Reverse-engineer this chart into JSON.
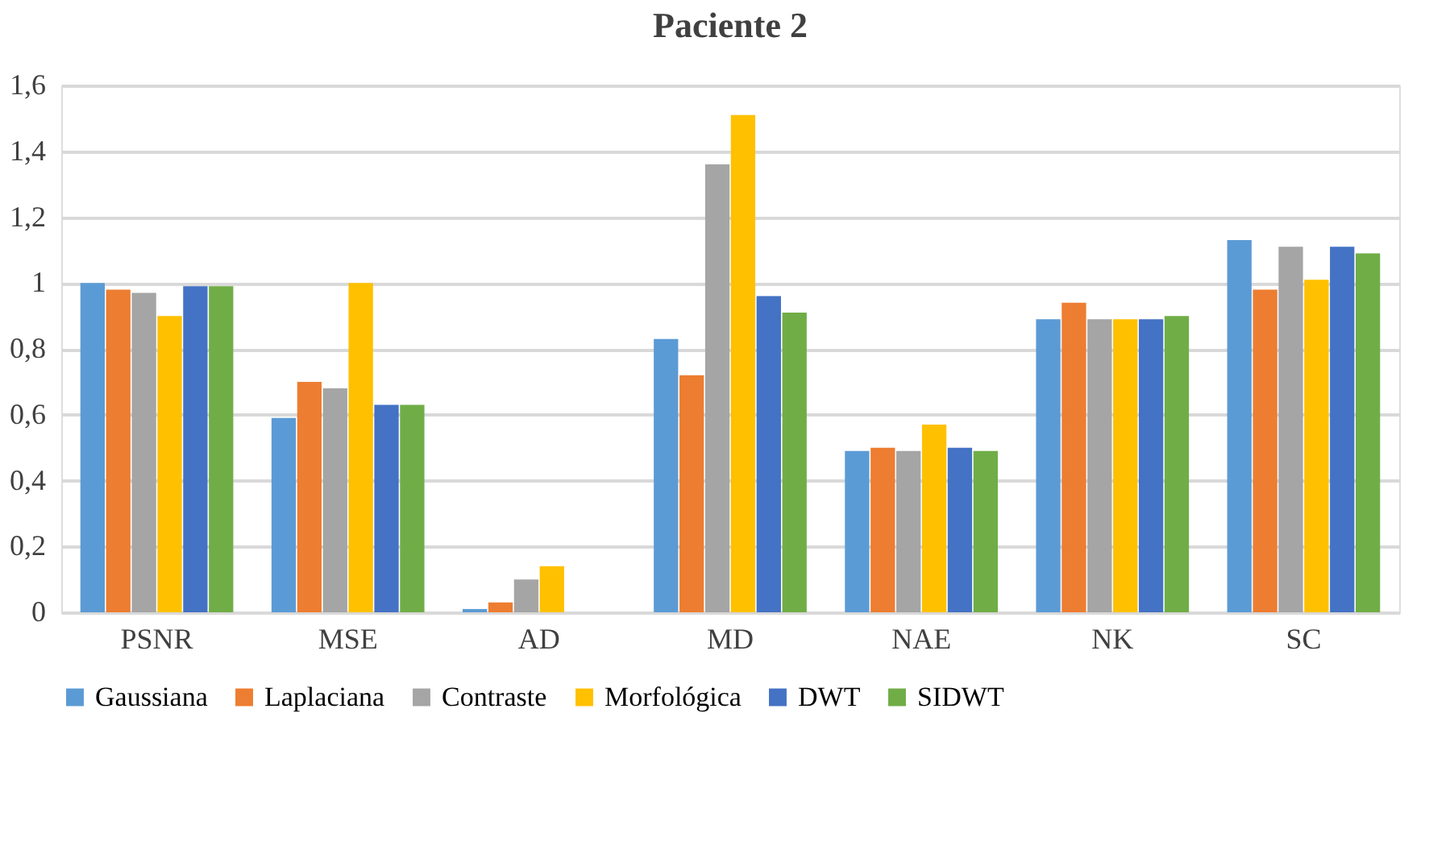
{
  "chart_data": {
    "type": "bar",
    "title": "Paciente 2",
    "categories": [
      "PSNR",
      "MSE",
      "AD",
      "MD",
      "NAE",
      "NK",
      "SC"
    ],
    "series": [
      {
        "name": "Gaussiana",
        "color": "#5b9bd5",
        "values": [
          1.0,
          0.59,
          0.01,
          0.83,
          0.49,
          0.89,
          1.13
        ]
      },
      {
        "name": "Laplaciana",
        "color": "#ed7d31",
        "values": [
          0.98,
          0.7,
          0.03,
          0.72,
          0.5,
          0.94,
          0.98
        ]
      },
      {
        "name": "Contraste",
        "color": "#a5a5a5",
        "values": [
          0.97,
          0.68,
          0.1,
          1.36,
          0.49,
          0.89,
          1.11
        ]
      },
      {
        "name": "Morfológica",
        "color": "#ffc000",
        "values": [
          0.9,
          1.0,
          0.14,
          1.51,
          0.57,
          0.89,
          1.01
        ]
      },
      {
        "name": "DWT",
        "color": "#4472c4",
        "values": [
          0.99,
          0.63,
          0.0,
          0.96,
          0.5,
          0.89,
          1.11
        ]
      },
      {
        "name": "SIDWT",
        "color": "#70ad47",
        "values": [
          0.99,
          0.63,
          0.0,
          0.91,
          0.49,
          0.9,
          1.09
        ]
      }
    ],
    "ylim": [
      0,
      1.6
    ],
    "yticks": [
      0,
      {
        "value": 0.2,
        "label": "0,2"
      },
      {
        "value": 0.4,
        "label": "0,4"
      },
      {
        "value": 0.6,
        "label": "0,6"
      },
      {
        "value": 0.8,
        "label": "0,8"
      },
      1,
      {
        "value": 1.2,
        "label": "1,2"
      },
      {
        "value": 1.4,
        "label": "1,4"
      },
      {
        "value": 1.6,
        "label": "1,6"
      }
    ],
    "grid": "y",
    "legend": "bottom"
  }
}
